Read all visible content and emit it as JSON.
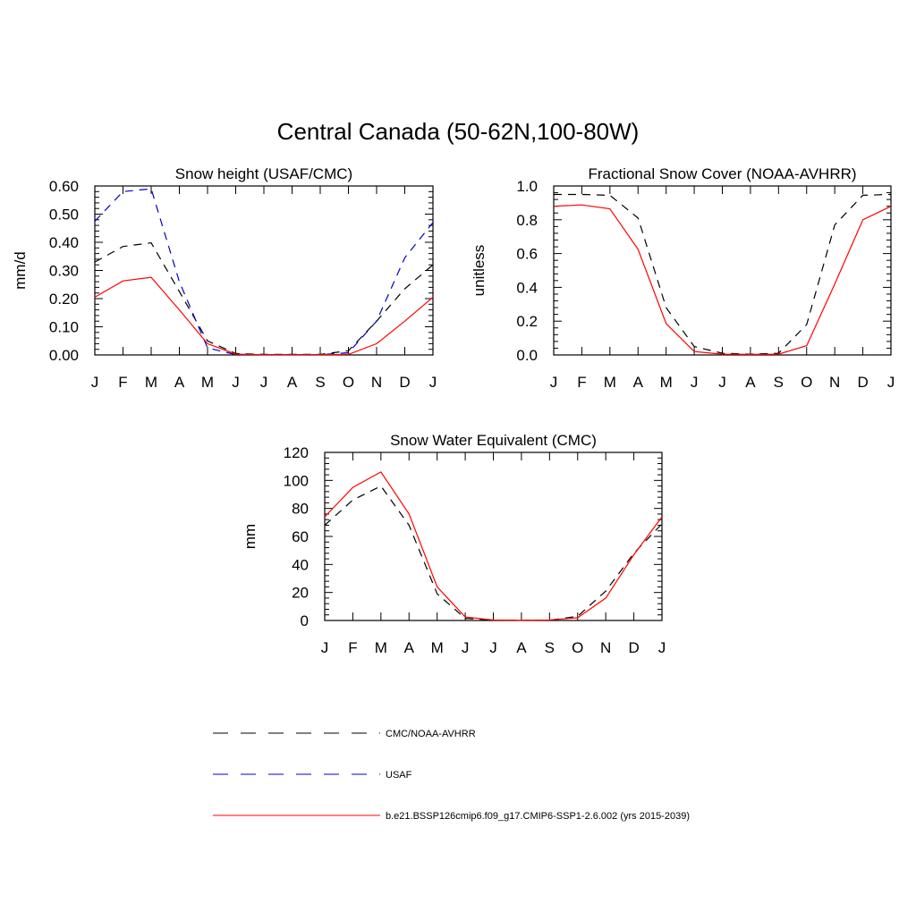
{
  "title": "Central Canada (50-62N,100-80W)",
  "colors": {
    "black": "#000000",
    "blue": "#0000cc",
    "red": "#ff0000"
  },
  "legend": [
    {
      "label": "CMC/NOAA-AVHRR",
      "color": "#000000",
      "dash": "dashed"
    },
    {
      "label": "USAF",
      "color": "#0000cc",
      "dash": "dashed"
    },
    {
      "label": "b.e21.BSSP126cmip6.f09_g17.CMIP6-SSP1-2.6.002 (yrs 2015-2039)",
      "color": "#ff0000",
      "dash": "solid"
    }
  ],
  "chart_data": [
    {
      "type": "line",
      "title": "Snow height (USAF/CMC)",
      "xlabel": "",
      "ylabel": "mm/d",
      "categories": [
        "J",
        "F",
        "M",
        "A",
        "M",
        "J",
        "J",
        "A",
        "S",
        "O",
        "N",
        "D",
        "J"
      ],
      "ylim": [
        0,
        0.6
      ],
      "yticks": [
        0,
        0.1,
        0.2,
        0.3,
        0.4,
        0.5,
        0.6
      ],
      "ytick_labels": [
        "0.00",
        "0.10",
        "0.20",
        "0.30",
        "0.40",
        "0.50",
        "0.60"
      ],
      "series": [
        {
          "name": "CMC/NOAA-AVHRR",
          "color": "#000000",
          "dash": "dashed",
          "values": [
            0.33,
            0.385,
            0.398,
            0.225,
            0.05,
            0.005,
            0.002,
            0.002,
            0.002,
            0.015,
            0.12,
            0.235,
            0.32
          ]
        },
        {
          "name": "USAF",
          "color": "#0000cc",
          "dash": "dashed",
          "values": [
            0.475,
            0.58,
            0.59,
            0.26,
            0.025,
            0.001,
            0.001,
            0.001,
            0.001,
            0.008,
            0.12,
            0.345,
            0.47
          ]
        },
        {
          "name": "b.e21.BSSP126cmip6.f09_g17.CMIP6-SSP1-2.6.002 (yrs 2015-2039)",
          "color": "#ff0000",
          "dash": "solid",
          "values": [
            0.205,
            0.263,
            0.276,
            0.16,
            0.04,
            0.003,
            0.001,
            0.001,
            0.001,
            0.002,
            0.04,
            0.12,
            0.205
          ]
        }
      ]
    },
    {
      "type": "line",
      "title": "Fractional Snow Cover (NOAA-AVHRR)",
      "xlabel": "",
      "ylabel": "unitless",
      "categories": [
        "J",
        "F",
        "M",
        "A",
        "M",
        "J",
        "J",
        "A",
        "S",
        "O",
        "N",
        "D",
        "J"
      ],
      "ylim": [
        0,
        1.0
      ],
      "yticks": [
        0,
        0.2,
        0.4,
        0.6,
        0.8,
        1.0
      ],
      "ytick_labels": [
        "0.0",
        "0.2",
        "0.4",
        "0.6",
        "0.8",
        "1.0"
      ],
      "series": [
        {
          "name": "CMC/NOAA-AVHRR",
          "color": "#000000",
          "dash": "dashed",
          "values": [
            0.95,
            0.95,
            0.945,
            0.81,
            0.28,
            0.05,
            0.01,
            0.005,
            0.01,
            0.18,
            0.77,
            0.945,
            0.95
          ]
        },
        {
          "name": "b.e21.BSSP126cmip6.f09_g17.CMIP6-SSP1-2.6.002 (yrs 2015-2039)",
          "color": "#ff0000",
          "dash": "solid",
          "values": [
            0.88,
            0.888,
            0.865,
            0.625,
            0.185,
            0.02,
            0.005,
            0.003,
            0.005,
            0.055,
            0.42,
            0.8,
            0.88
          ]
        }
      ]
    },
    {
      "type": "line",
      "title": "Snow Water Equivalent (CMC)",
      "xlabel": "",
      "ylabel": "mm",
      "categories": [
        "J",
        "F",
        "M",
        "A",
        "M",
        "J",
        "J",
        "A",
        "S",
        "O",
        "N",
        "D",
        "J"
      ],
      "ylim": [
        0,
        120
      ],
      "yticks": [
        0,
        20,
        40,
        60,
        80,
        100,
        120
      ],
      "ytick_labels": [
        "0",
        "20",
        "40",
        "60",
        "80",
        "100",
        "120"
      ],
      "series": [
        {
          "name": "CMC/NOAA-AVHRR",
          "color": "#000000",
          "dash": "dashed",
          "values": [
            68,
            86,
            96,
            68,
            19,
            1.5,
            0.2,
            0.1,
            0.2,
            3,
            21,
            48,
            69
          ]
        },
        {
          "name": "b.e21.BSSP126cmip6.f09_g17.CMIP6-SSP1-2.6.002 (yrs 2015-2039)",
          "color": "#ff0000",
          "dash": "solid",
          "values": [
            74,
            95,
            106,
            76,
            24,
            2.5,
            0.3,
            0.1,
            0.3,
            2,
            16,
            47,
            74
          ]
        }
      ]
    }
  ]
}
